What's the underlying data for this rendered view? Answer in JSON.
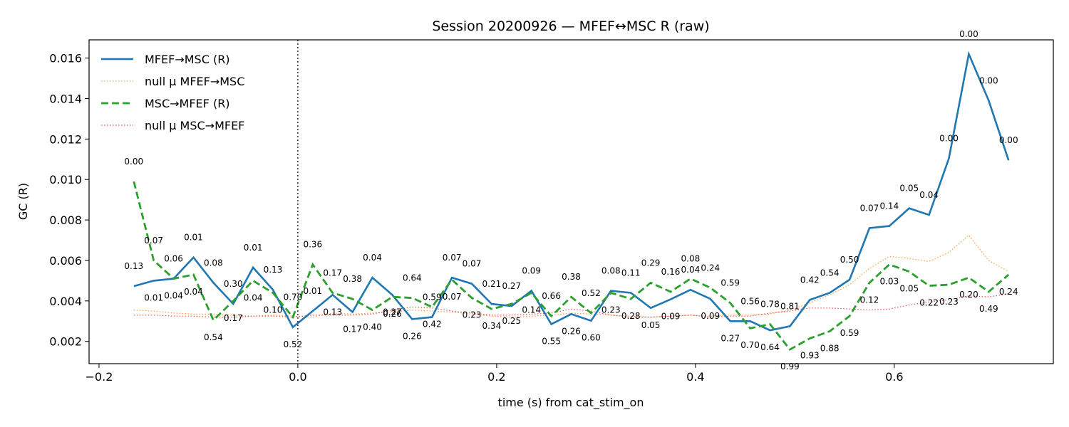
{
  "chart_data": {
    "type": "line",
    "title": "Session 20200926 — MFEF↔MSC R (raw)",
    "xlabel": "time (s) from cat_stim_on",
    "ylabel": "GC (R)",
    "xlim": [
      -0.21,
      0.76
    ],
    "ylim": [
      0.0009,
      0.0169
    ],
    "xticks": [
      -0.2,
      0.0,
      0.2,
      0.4,
      0.6
    ],
    "xtick_labels": [
      "−0.2",
      "0.0",
      "0.2",
      "0.4",
      "0.6"
    ],
    "yticks": [
      0.002,
      0.004,
      0.006,
      0.008,
      0.01,
      0.012,
      0.014,
      0.016
    ],
    "ytick_labels": [
      "0.002",
      "0.004",
      "0.006",
      "0.008",
      "0.010",
      "0.012",
      "0.014",
      "0.016"
    ],
    "grid": false,
    "legend_position": "upper-left",
    "vline_x": 0.0,
    "x": [
      -0.165,
      -0.145,
      -0.125,
      -0.105,
      -0.085,
      -0.065,
      -0.045,
      -0.025,
      -0.005,
      0.015,
      0.035,
      0.055,
      0.075,
      0.095,
      0.115,
      0.135,
      0.155,
      0.175,
      0.195,
      0.215,
      0.235,
      0.255,
      0.275,
      0.295,
      0.315,
      0.335,
      0.355,
      0.375,
      0.395,
      0.415,
      0.435,
      0.455,
      0.475,
      0.495,
      0.515,
      0.535,
      0.555,
      0.575,
      0.595,
      0.615,
      0.635,
      0.655,
      0.675,
      0.695,
      0.715
    ],
    "series": [
      {
        "name": "MFEF→MSC (R)",
        "color": "#1f77b4",
        "style": "solid",
        "values": [
          0.00473,
          0.005,
          0.0051,
          0.00615,
          0.0049,
          0.00385,
          0.00565,
          0.00455,
          0.0027,
          0.0035,
          0.0043,
          0.00345,
          0.00515,
          0.0043,
          0.0031,
          0.0032,
          0.00515,
          0.00485,
          0.00385,
          0.00375,
          0.0045,
          0.00285,
          0.00335,
          0.00302,
          0.0045,
          0.0044,
          0.00365,
          0.00408,
          0.00455,
          0.0041,
          0.003,
          0.003,
          0.00255,
          0.00275,
          0.00405,
          0.0044,
          0.00505,
          0.0076,
          0.0077,
          0.00858,
          0.00825,
          0.01105,
          0.0162,
          0.0139,
          0.01095
        ],
        "labels": [
          "0.13",
          "0.01",
          "0.06",
          "0.01",
          "0.08",
          "0.30",
          "0.01",
          "0.13",
          "0.52",
          "0.01",
          "0.13",
          "0.17",
          "0.04",
          "0.27",
          "0.26",
          "0.59",
          "0.07",
          "0.07",
          "0.21",
          "0.27",
          "0.09",
          "0.55",
          "0.26",
          "0.60",
          "0.08",
          "0.11",
          "0.05",
          "0.09",
          "0.04",
          "0.09",
          "0.27",
          "0.56",
          "0.64",
          "0.81",
          "0.42",
          "0.54",
          "0.50",
          "0.07",
          "0.14",
          "0.05",
          "0.04",
          "0.00",
          "0.00",
          "0.00",
          "0.00"
        ],
        "label_offsets": [
          1,
          -1,
          1,
          1,
          1,
          1,
          1,
          1,
          -1,
          1,
          -1,
          -1,
          1,
          -1,
          -1,
          1,
          1,
          1,
          1,
          1,
          1,
          -1,
          -1,
          -1,
          1,
          1,
          -1,
          -1,
          1,
          -1,
          -1,
          1,
          -1,
          1,
          1,
          1,
          1,
          1,
          1,
          1,
          1,
          1,
          1,
          1,
          1
        ]
      },
      {
        "name": "null µ MFEF→MSC",
        "color": "#ff7f0e",
        "style": "dotted",
        "values": [
          0.00355,
          0.0035,
          0.0034,
          0.00335,
          0.00335,
          0.0033,
          0.00325,
          0.0033,
          0.00325,
          0.0032,
          0.0034,
          0.00335,
          0.0034,
          0.00345,
          0.00355,
          0.0035,
          0.00345,
          0.00335,
          0.00325,
          0.0032,
          0.00325,
          0.0033,
          0.0034,
          0.00335,
          0.0033,
          0.00325,
          0.0032,
          0.00325,
          0.0033,
          0.00325,
          0.0033,
          0.0033,
          0.00335,
          0.00355,
          0.0039,
          0.0043,
          0.0048,
          0.0056,
          0.0062,
          0.0061,
          0.00595,
          0.0064,
          0.00725,
          0.006,
          0.00545
        ]
      },
      {
        "name": "MSC→MFEF (R)",
        "color": "#2ca02c",
        "style": "dashed",
        "values": [
          0.0099,
          0.006,
          0.0051,
          0.0053,
          0.00305,
          0.004,
          0.005,
          0.0044,
          0.0032,
          0.0058,
          0.0044,
          0.0041,
          0.00355,
          0.0042,
          0.00415,
          0.0037,
          0.00505,
          0.00415,
          0.0036,
          0.00385,
          0.0044,
          0.00325,
          0.0042,
          0.0034,
          0.0044,
          0.0041,
          0.0049,
          0.00445,
          0.0051,
          0.00465,
          0.0039,
          0.00265,
          0.00285,
          0.0016,
          0.00215,
          0.0025,
          0.00325,
          0.0049,
          0.0058,
          0.00545,
          0.00475,
          0.0048,
          0.00515,
          0.00445,
          0.0053
        ],
        "labels": [
          "0.00",
          "0.07",
          "0.04",
          "0.04",
          "0.54",
          "0.17",
          "0.04",
          "0.10",
          "0.70",
          "0.36",
          "0.17",
          "0.38",
          "0.40",
          "0.26",
          "0.64",
          "0.42",
          "0.07",
          "0.23",
          "0.34",
          "0.25",
          "0.14",
          "0.66",
          "0.38",
          "0.52",
          "0.23",
          "0.28",
          "0.29",
          "0.16",
          "0.08",
          "0.24",
          "0.59",
          "0.70",
          "0.78",
          "0.99",
          "0.93",
          "0.88",
          "0.59",
          "0.12",
          "0.03",
          "0.05",
          "0.22",
          "0.23",
          "0.20",
          "0.49",
          "0.24"
        ],
        "label_offsets": [
          1,
          1,
          -1,
          -1,
          -1,
          -1,
          -1,
          -1,
          1,
          1,
          1,
          1,
          -1,
          -1,
          1,
          -1,
          -1,
          -1,
          -1,
          -1,
          -1,
          1,
          1,
          1,
          -1,
          -1,
          1,
          1,
          1,
          1,
          1,
          -1,
          1,
          -1,
          -1,
          -1,
          -1,
          -1,
          -1,
          -1,
          -1,
          -1,
          -1,
          -1,
          -1
        ]
      },
      {
        "name": "null µ MSC→MFEF",
        "color": "#d62728",
        "style": "dotted",
        "values": [
          0.0033,
          0.0033,
          0.00325,
          0.00325,
          0.0032,
          0.0032,
          0.00325,
          0.00325,
          0.0032,
          0.0033,
          0.0033,
          0.0033,
          0.00335,
          0.00355,
          0.0037,
          0.00365,
          0.0035,
          0.0034,
          0.0033,
          0.0033,
          0.00335,
          0.0034,
          0.0036,
          0.0035,
          0.0033,
          0.0032,
          0.0032,
          0.00325,
          0.0033,
          0.0032,
          0.00325,
          0.00325,
          0.0034,
          0.0035,
          0.00365,
          0.00365,
          0.0036,
          0.00355,
          0.0036,
          0.0038,
          0.00395,
          0.00405,
          0.00425,
          0.0042,
          0.00435
        ]
      }
    ]
  }
}
